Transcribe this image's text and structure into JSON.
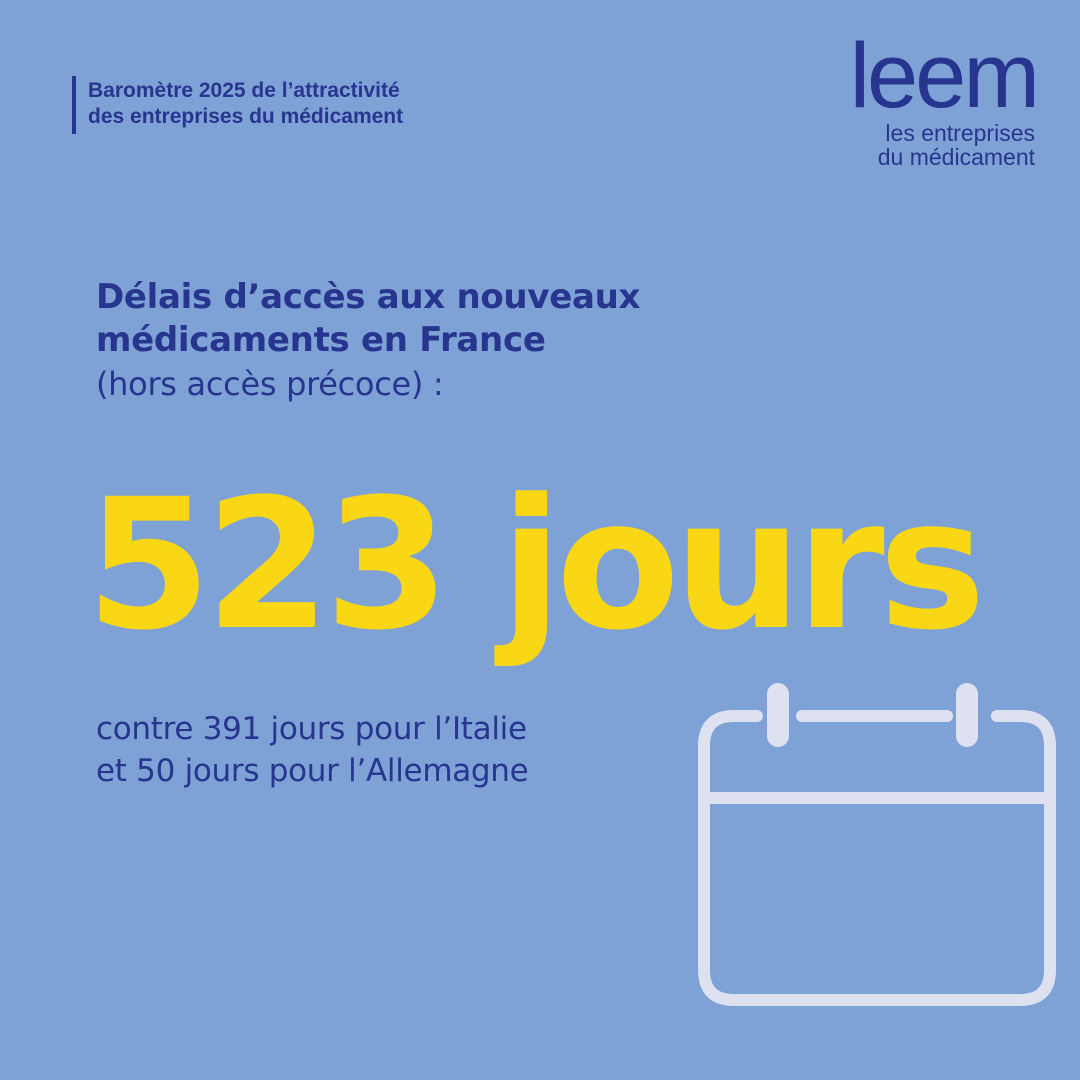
{
  "header": {
    "line1": "Baromètre 2025 de l’attractivité",
    "line2": "des entreprises du médicament"
  },
  "logo": {
    "wordmark": "leem",
    "tagline_line1": "les entreprises",
    "tagline_line2": "du médicament"
  },
  "headline": {
    "line1": "Délais d’accès aux nouveaux",
    "line2": "médicaments en France",
    "line3": "(hors accès précoce) :"
  },
  "stat": {
    "value": "523 jours"
  },
  "comparison": {
    "line1": "contre 391 jours pour l’Italie",
    "line2": "et 50 jours pour l’Allemagne"
  },
  "icons": {
    "calendar": "calendar-icon"
  },
  "colors": {
    "background": "#7ea2d6",
    "brand_blue": "#27358f",
    "accent_yellow": "#fad715",
    "icon_light": "#dde1f0"
  }
}
